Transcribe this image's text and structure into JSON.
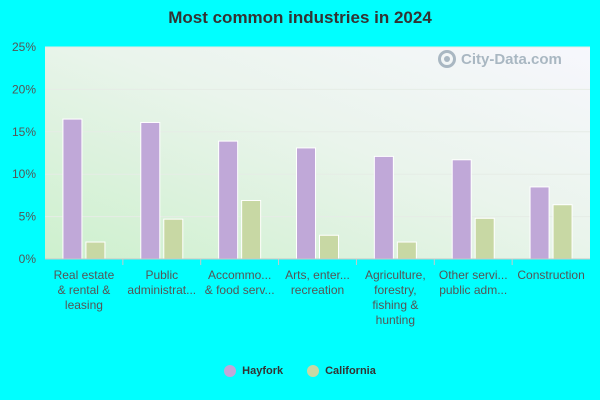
{
  "chart_data": {
    "type": "bar",
    "title": "Most common industries in 2024",
    "categories": [
      [
        "Real estate",
        "& rental &",
        "leasing"
      ],
      [
        "Public",
        "administrat..."
      ],
      [
        "Accommo...",
        "& food serv..."
      ],
      [
        "Arts, enter...",
        "recreation"
      ],
      [
        "Agriculture,",
        "forestry,",
        "fishing &",
        "hunting"
      ],
      [
        "Other servi...",
        "public adm..."
      ],
      [
        "Construction"
      ]
    ],
    "series": [
      {
        "name": "Hayfork",
        "color": "#c0a8d8",
        "values": [
          16.5,
          16.1,
          13.9,
          13.1,
          12.1,
          11.7,
          8.5
        ]
      },
      {
        "name": "California",
        "color": "#c8d8a4",
        "values": [
          2.0,
          4.7,
          6.9,
          2.8,
          2.0,
          4.8,
          6.4
        ]
      }
    ],
    "yticks": [
      "0%",
      "5%",
      "10%",
      "15%",
      "20%",
      "25%"
    ],
    "ylim": [
      0,
      25
    ],
    "xlabel": "",
    "ylabel": "",
    "grid": true,
    "legend_position": "bottom"
  },
  "watermark": "City-Data.com"
}
